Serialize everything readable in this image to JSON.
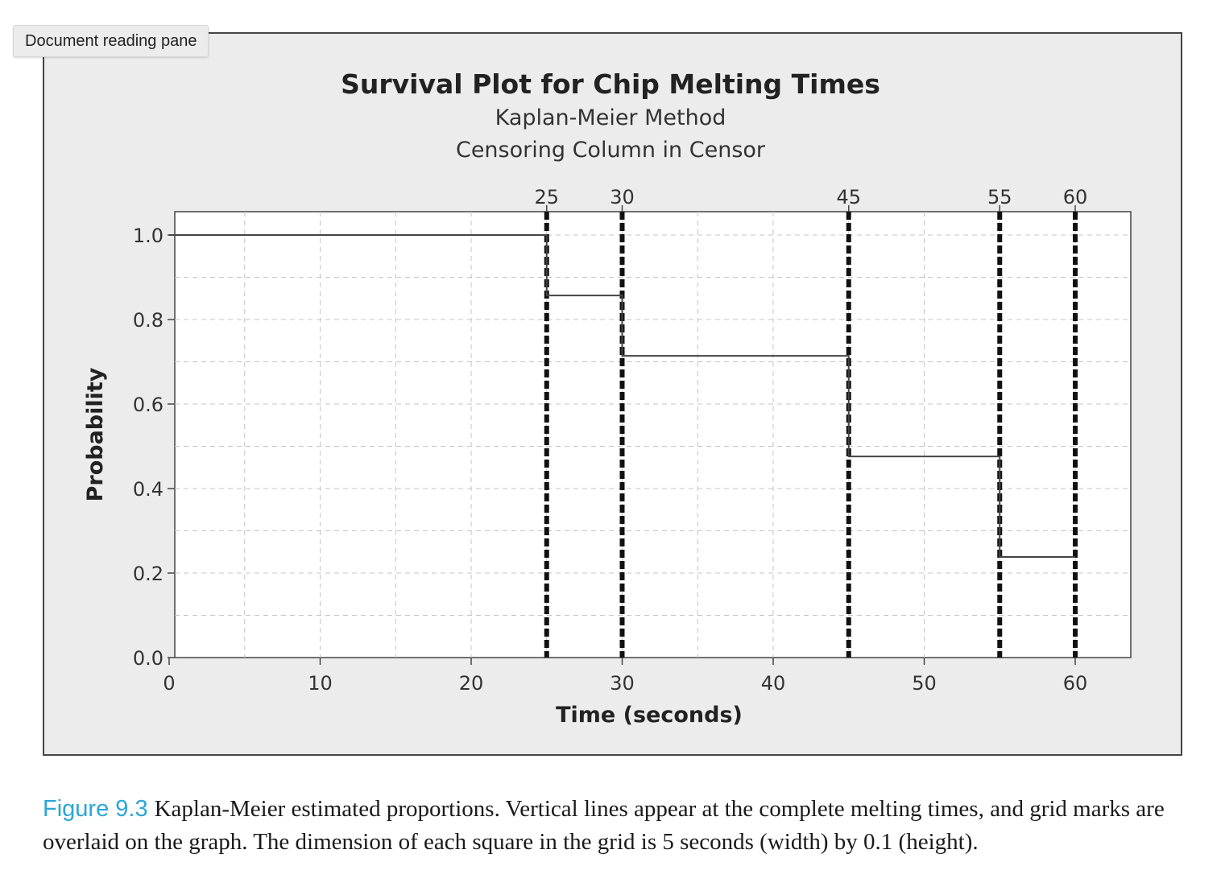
{
  "pane": {
    "label": "Document reading pane"
  },
  "chart_data": {
    "type": "line",
    "title": "Survival Plot for Chip Melting Times",
    "subtitle_lines": [
      "Kaplan-Meier Method",
      "Censoring Column in Censor"
    ],
    "xlabel": "Time (seconds)",
    "ylabel": "Probability",
    "xlim": [
      0,
      63
    ],
    "ylim": [
      0,
      1.05
    ],
    "x_ticks": [
      0,
      10,
      20,
      30,
      40,
      50,
      60
    ],
    "y_ticks": [
      "0.0",
      "0.2",
      "0.4",
      "0.6",
      "0.8",
      "1.0"
    ],
    "grid": {
      "x_step": 5,
      "y_step": 0.1,
      "style": "dashed"
    },
    "top_axis_ticks": [
      25,
      30,
      45,
      55,
      60
    ],
    "event_lines": [
      25,
      30,
      45,
      55,
      60
    ],
    "series": [
      {
        "x": [
          0,
          25,
          25,
          30,
          30,
          45,
          45,
          55,
          55,
          60
        ],
        "y": [
          1.0,
          1.0,
          0.857,
          0.857,
          0.714,
          0.714,
          0.476,
          0.476,
          0.238,
          0.238
        ]
      }
    ]
  },
  "caption": {
    "figure_number": "Figure 9.3",
    "text": "Kaplan-Meier estimated proportions. Vertical lines appear at the complete melting times, and grid marks are overlaid on the graph. The dimension of each square in the grid is 5 seconds (width) by 0.1 (height)."
  }
}
